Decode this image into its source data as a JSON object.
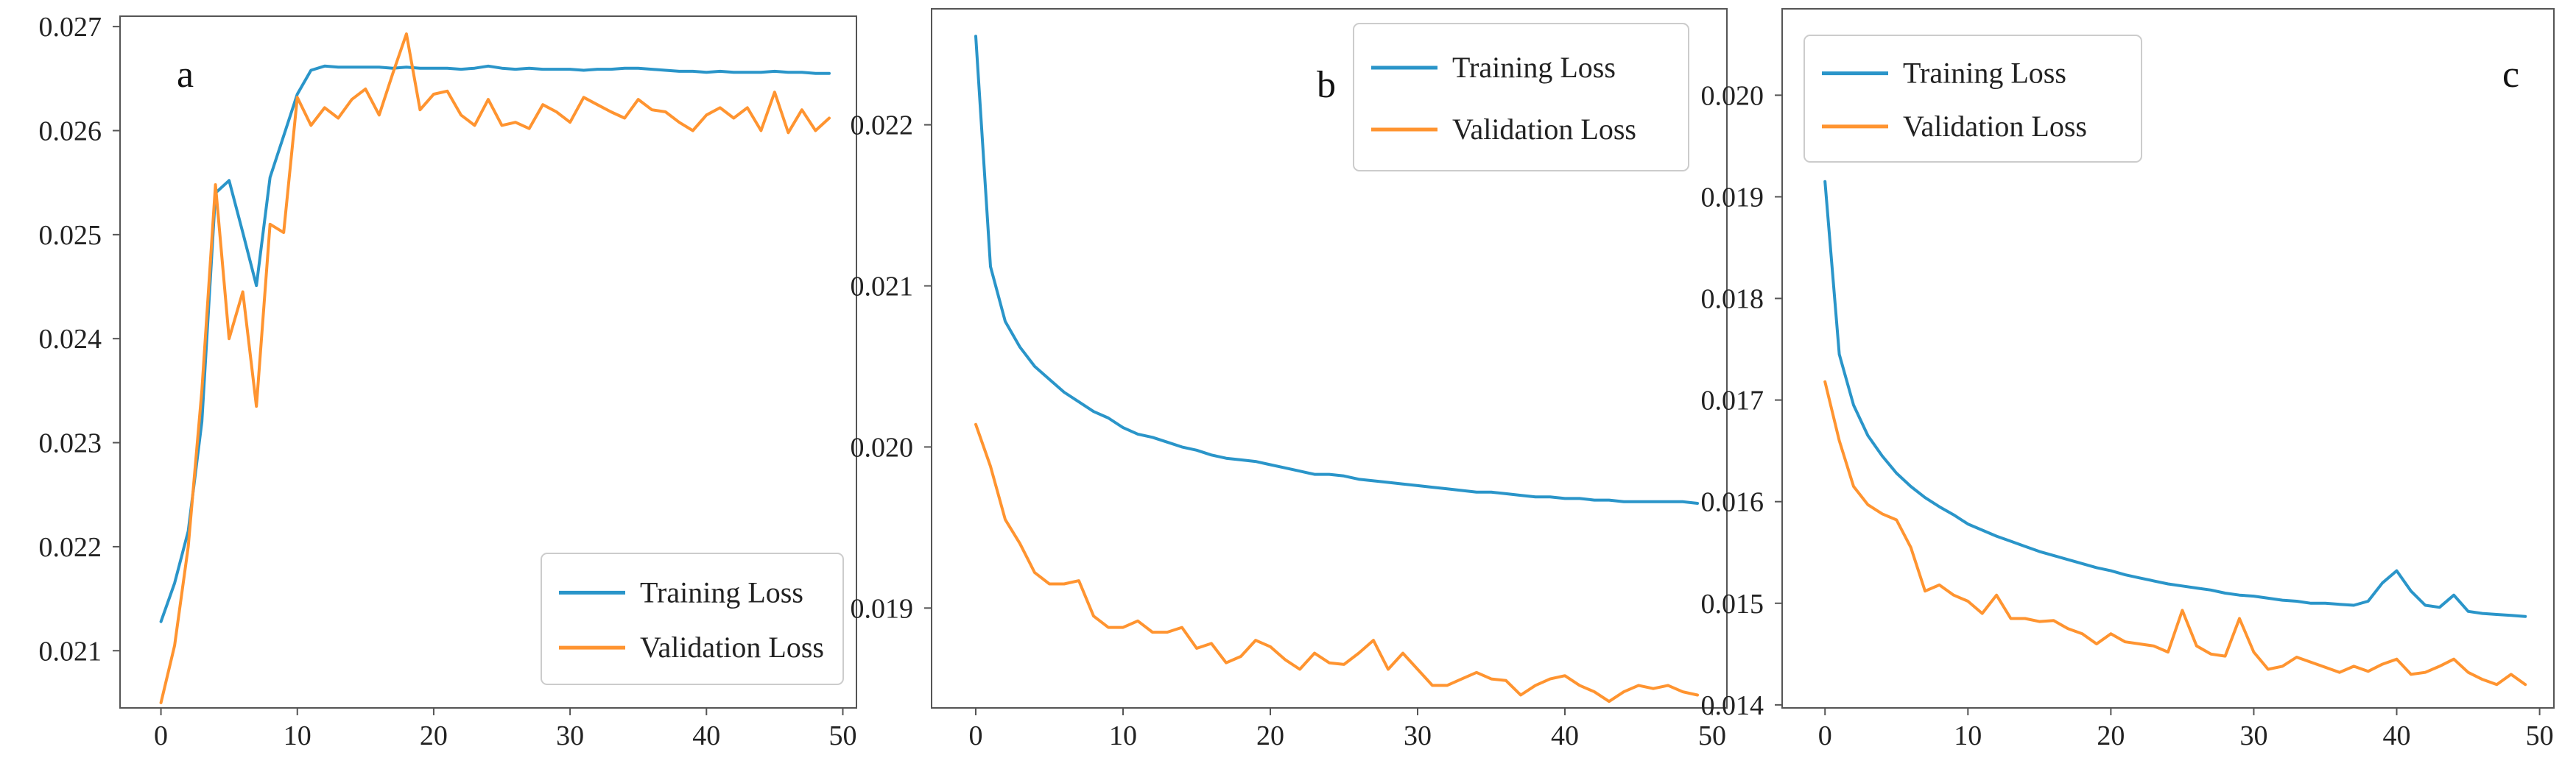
{
  "colors": {
    "training": "#2a95c9",
    "validation": "#ff9430",
    "axis": "#555555"
  },
  "chart_data": [
    {
      "type": "line",
      "panel_label": "a",
      "legend_position": "lower-right",
      "xlim": [
        -3,
        51
      ],
      "ylim": [
        0.02045,
        0.0271
      ],
      "xticks": [
        0,
        10,
        20,
        30,
        40,
        50
      ],
      "xtick_labels": [
        "0",
        "10",
        "20",
        "30",
        "40",
        "50"
      ],
      "yticks": [
        0.021,
        0.022,
        0.023,
        0.024,
        0.025,
        0.026,
        0.027
      ],
      "ytick_labels": [
        "0.021",
        "0.022",
        "0.023",
        "0.024",
        "0.025",
        "0.026",
        "0.027"
      ],
      "x": [
        0,
        1,
        2,
        3,
        4,
        5,
        6,
        7,
        8,
        9,
        10,
        11,
        12,
        13,
        14,
        15,
        16,
        17,
        18,
        19,
        20,
        21,
        22,
        23,
        24,
        25,
        26,
        27,
        28,
        29,
        30,
        31,
        32,
        33,
        34,
        35,
        36,
        37,
        38,
        39,
        40,
        41,
        42,
        43,
        44,
        45,
        46,
        47,
        48,
        49
      ],
      "series": [
        {
          "name": "Training Loss",
          "color_key": "training",
          "values": [
            0.02128,
            0.02165,
            0.02215,
            0.0232,
            0.0254,
            0.02552,
            0.02502,
            0.02451,
            0.02555,
            0.02595,
            0.02635,
            0.02658,
            0.02662,
            0.02661,
            0.02661,
            0.02661,
            0.02661,
            0.0266,
            0.02661,
            0.0266,
            0.0266,
            0.0266,
            0.02659,
            0.0266,
            0.02662,
            0.0266,
            0.02659,
            0.0266,
            0.02659,
            0.02659,
            0.02659,
            0.02658,
            0.02659,
            0.02659,
            0.0266,
            0.0266,
            0.02659,
            0.02658,
            0.02657,
            0.02657,
            0.02656,
            0.02657,
            0.02656,
            0.02656,
            0.02656,
            0.02657,
            0.02656,
            0.02656,
            0.02655,
            0.02655
          ]
        },
        {
          "name": "Validation Loss",
          "color_key": "validation",
          "values": [
            0.0205,
            0.02105,
            0.022,
            0.0235,
            0.02548,
            0.024,
            0.02445,
            0.02335,
            0.0251,
            0.02502,
            0.02632,
            0.02605,
            0.02622,
            0.02612,
            0.0263,
            0.0264,
            0.02615,
            0.02655,
            0.02693,
            0.0262,
            0.02635,
            0.02638,
            0.02615,
            0.02605,
            0.0263,
            0.02605,
            0.02608,
            0.02602,
            0.02625,
            0.02618,
            0.02608,
            0.02632,
            0.02625,
            0.02618,
            0.02612,
            0.0263,
            0.0262,
            0.02618,
            0.02608,
            0.026,
            0.02615,
            0.02622,
            0.02612,
            0.02622,
            0.026,
            0.02637,
            0.02598,
            0.0262,
            0.026,
            0.02612
          ]
        }
      ]
    },
    {
      "type": "line",
      "panel_label": "b",
      "legend_position": "upper-right",
      "xlim": [
        -3,
        51
      ],
      "ylim": [
        0.01838,
        0.02272
      ],
      "xticks": [
        0,
        10,
        20,
        30,
        40,
        50
      ],
      "xtick_labels": [
        "0",
        "10",
        "20",
        "30",
        "40",
        "50"
      ],
      "yticks": [
        0.019,
        0.02,
        0.021,
        0.022
      ],
      "ytick_labels": [
        "0.019",
        "0.020",
        "0.021",
        "0.022"
      ],
      "x": [
        0,
        1,
        2,
        3,
        4,
        5,
        6,
        7,
        8,
        9,
        10,
        11,
        12,
        13,
        14,
        15,
        16,
        17,
        18,
        19,
        20,
        21,
        22,
        23,
        24,
        25,
        26,
        27,
        28,
        29,
        30,
        31,
        32,
        33,
        34,
        35,
        36,
        37,
        38,
        39,
        40,
        41,
        42,
        43,
        44,
        45,
        46,
        47,
        48,
        49
      ],
      "series": [
        {
          "name": "Training Loss",
          "color_key": "training",
          "values": [
            0.02255,
            0.02112,
            0.02078,
            0.02062,
            0.0205,
            0.02042,
            0.02034,
            0.02028,
            0.02022,
            0.02018,
            0.02012,
            0.02008,
            0.02006,
            0.02003,
            0.02,
            0.01998,
            0.01995,
            0.01993,
            0.01992,
            0.01991,
            0.01989,
            0.01987,
            0.01985,
            0.01983,
            0.01983,
            0.01982,
            0.0198,
            0.01979,
            0.01978,
            0.01977,
            0.01976,
            0.01975,
            0.01974,
            0.01973,
            0.01972,
            0.01972,
            0.01971,
            0.0197,
            0.01969,
            0.01969,
            0.01968,
            0.01968,
            0.01967,
            0.01967,
            0.01966,
            0.01966,
            0.01966,
            0.01966,
            0.01966,
            0.01965
          ]
        },
        {
          "name": "Validation Loss",
          "color_key": "validation",
          "values": [
            0.02014,
            0.01988,
            0.01955,
            0.0194,
            0.01922,
            0.01915,
            0.01915,
            0.01917,
            0.01895,
            0.01888,
            0.01888,
            0.01892,
            0.01885,
            0.01885,
            0.01888,
            0.01875,
            0.01878,
            0.01866,
            0.0187,
            0.0188,
            0.01876,
            0.01868,
            0.01862,
            0.01872,
            0.01866,
            0.01865,
            0.01872,
            0.0188,
            0.01862,
            0.01872,
            0.01862,
            0.01852,
            0.01852,
            0.01856,
            0.0186,
            0.01856,
            0.01855,
            0.01846,
            0.01852,
            0.01856,
            0.01858,
            0.01852,
            0.01848,
            0.01842,
            0.01848,
            0.01852,
            0.0185,
            0.01852,
            0.01848,
            0.01846
          ]
        }
      ]
    },
    {
      "type": "line",
      "panel_label": "c",
      "legend_position": "upper-left",
      "xlim": [
        -3,
        51
      ],
      "ylim": [
        0.01397,
        0.02085
      ],
      "xticks": [
        0,
        10,
        20,
        30,
        40,
        50
      ],
      "xtick_labels": [
        "0",
        "10",
        "20",
        "30",
        "40",
        "50"
      ],
      "yticks": [
        0.014,
        0.015,
        0.016,
        0.017,
        0.018,
        0.019,
        0.02
      ],
      "ytick_labels": [
        "0.014",
        "0.015",
        "0.016",
        "0.017",
        "0.018",
        "0.019",
        "0.020"
      ],
      "x": [
        0,
        1,
        2,
        3,
        4,
        5,
        6,
        7,
        8,
        9,
        10,
        11,
        12,
        13,
        14,
        15,
        16,
        17,
        18,
        19,
        20,
        21,
        22,
        23,
        24,
        25,
        26,
        27,
        28,
        29,
        30,
        31,
        32,
        33,
        34,
        35,
        36,
        37,
        38,
        39,
        40,
        41,
        42,
        43,
        44,
        45,
        46,
        47,
        48,
        49
      ],
      "series": [
        {
          "name": "Training Loss",
          "color_key": "training",
          "values": [
            0.01915,
            0.01745,
            0.01695,
            0.01665,
            0.01645,
            0.01628,
            0.01615,
            0.01604,
            0.01595,
            0.01587,
            0.01578,
            0.01572,
            0.01566,
            0.01561,
            0.01556,
            0.01551,
            0.01547,
            0.01543,
            0.01539,
            0.01535,
            0.01532,
            0.01528,
            0.01525,
            0.01522,
            0.01519,
            0.01517,
            0.01515,
            0.01513,
            0.0151,
            0.01508,
            0.01507,
            0.01505,
            0.01503,
            0.01502,
            0.015,
            0.015,
            0.01499,
            0.01498,
            0.01502,
            0.0152,
            0.01532,
            0.01512,
            0.01498,
            0.01496,
            0.01508,
            0.01492,
            0.0149,
            0.01489,
            0.01488,
            0.01487
          ]
        },
        {
          "name": "Validation Loss",
          "color_key": "validation",
          "values": [
            0.01718,
            0.0166,
            0.01615,
            0.01597,
            0.01588,
            0.01582,
            0.01555,
            0.01512,
            0.01518,
            0.01508,
            0.01502,
            0.0149,
            0.01508,
            0.01485,
            0.01485,
            0.01482,
            0.01483,
            0.01475,
            0.0147,
            0.0146,
            0.0147,
            0.01462,
            0.0146,
            0.01458,
            0.01452,
            0.01493,
            0.01458,
            0.0145,
            0.01448,
            0.01485,
            0.01452,
            0.01435,
            0.01438,
            0.01447,
            0.01442,
            0.01437,
            0.01432,
            0.01438,
            0.01433,
            0.0144,
            0.01445,
            0.0143,
            0.01432,
            0.01438,
            0.01445,
            0.01432,
            0.01425,
            0.0142,
            0.0143,
            0.0142
          ]
        }
      ]
    }
  ]
}
